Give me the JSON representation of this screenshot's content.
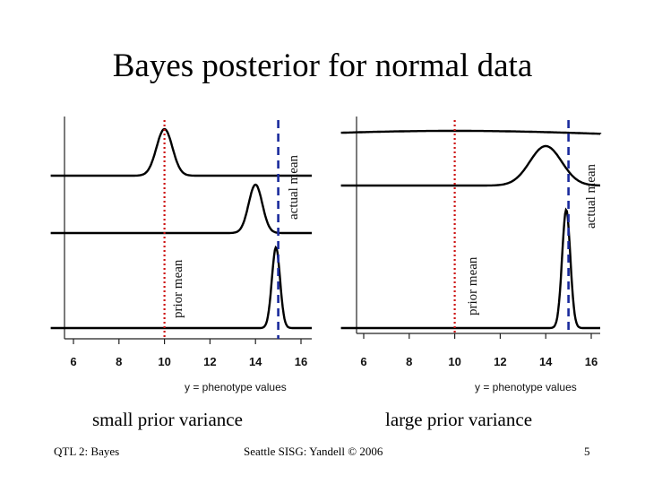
{
  "slide": {
    "title": "Bayes posterior for normal data",
    "left_caption": "small prior variance",
    "right_caption": "large prior variance",
    "footer_left": "QTL 2: Bayes",
    "footer_center": "Seattle SISG: Yandell © 2006",
    "page_number": "5"
  },
  "colors": {
    "prior_line": "#cc1111",
    "actual_line": "#1a2a9c",
    "curve": "#000000"
  },
  "chart_data": [
    {
      "type": "line",
      "subtitle": "small prior variance",
      "xlabel": "y = phenotype values",
      "xlim": [
        5,
        16.5
      ],
      "xticks": [
        6,
        8,
        10,
        12,
        14,
        16
      ],
      "reference_lines": [
        {
          "label": "prior mean",
          "x": 10,
          "style": "dotted",
          "color": "#cc1111"
        },
        {
          "label": "actual mean",
          "x": 15,
          "style": "dashed",
          "color": "#1a2a9c"
        }
      ],
      "panels": [
        {
          "mean": 10,
          "sd": 0.35
        },
        {
          "mean": 14,
          "sd": 0.3
        },
        {
          "mean": 14.9,
          "sd": 0.18
        }
      ]
    },
    {
      "type": "line",
      "subtitle": "large prior variance",
      "xlabel": "y = phenotype values",
      "xlim": [
        5,
        16.5
      ],
      "xticks": [
        6,
        8,
        10,
        12,
        14,
        16
      ],
      "reference_lines": [
        {
          "label": "prior mean",
          "x": 10,
          "style": "dotted",
          "color": "#cc1111"
        },
        {
          "label": "actual mean",
          "x": 15,
          "style": "dashed",
          "color": "#1a2a9c"
        }
      ],
      "panels": [
        {
          "mean": 10,
          "sd": 8
        },
        {
          "mean": 14,
          "sd": 0.7
        },
        {
          "mean": 14.9,
          "sd": 0.18
        }
      ]
    }
  ]
}
